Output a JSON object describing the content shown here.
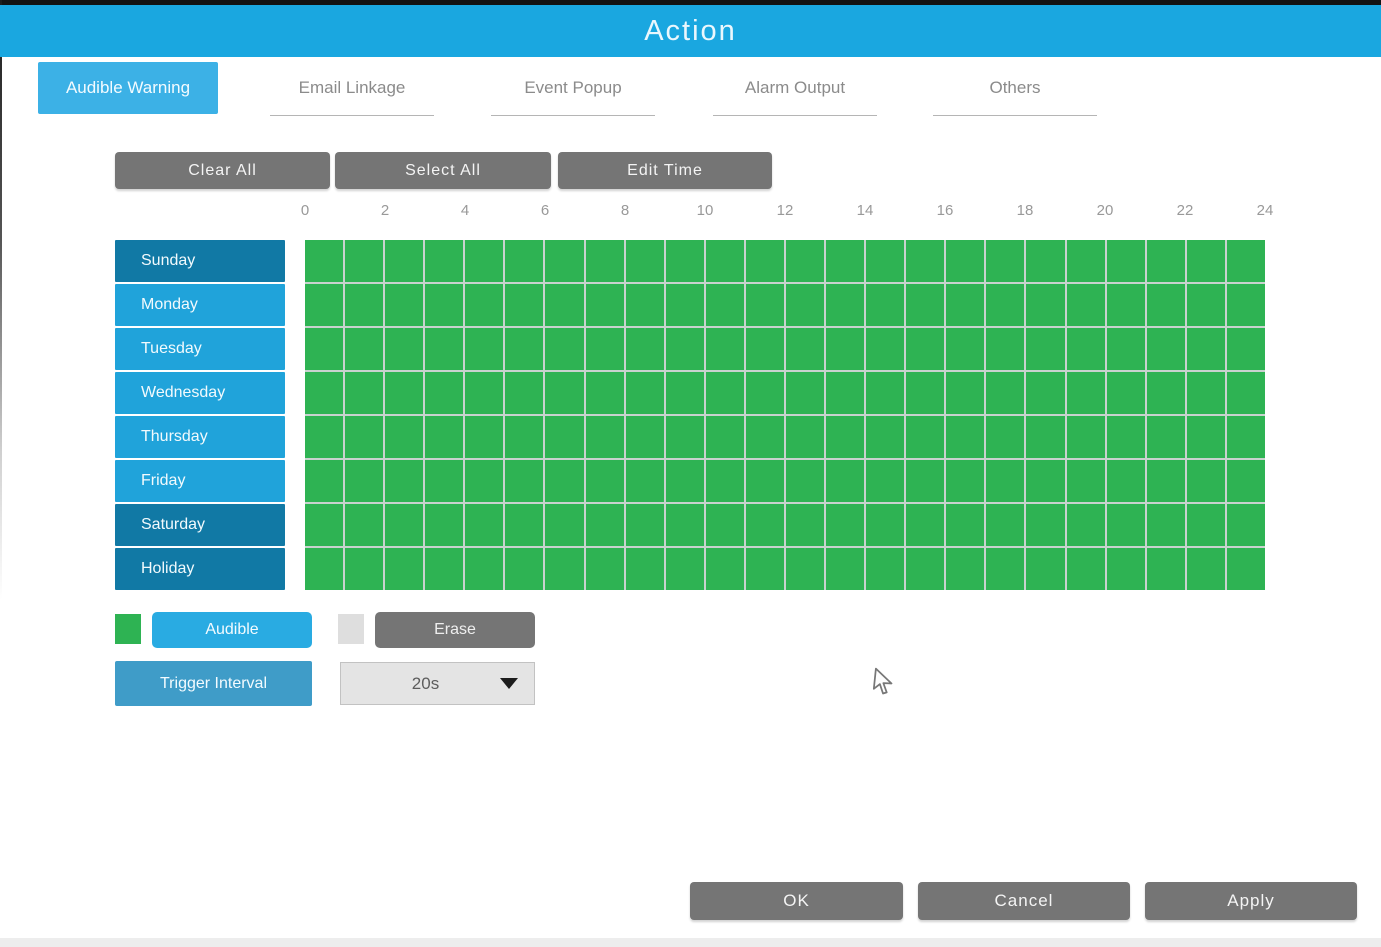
{
  "window": {
    "title": "Action"
  },
  "tabs": [
    {
      "label": "Audible Warning",
      "active": true
    },
    {
      "label": "Email Linkage",
      "active": false
    },
    {
      "label": "Event Popup",
      "active": false
    },
    {
      "label": "Alarm Output",
      "active": false
    },
    {
      "label": "Others",
      "active": false
    }
  ],
  "toolbar": {
    "clear_all": "Clear All",
    "select_all": "Select All",
    "edit_time": "Edit Time"
  },
  "schedule": {
    "hour_ticks": [
      0,
      2,
      4,
      6,
      8,
      10,
      12,
      14,
      16,
      18,
      20,
      22,
      24
    ],
    "hours_per_day": 24,
    "days": [
      {
        "label": "Sunday",
        "tone": "dark",
        "ranges": [
          [
            0,
            24
          ]
        ]
      },
      {
        "label": "Monday",
        "tone": "light",
        "ranges": [
          [
            0,
            24
          ]
        ]
      },
      {
        "label": "Tuesday",
        "tone": "light",
        "ranges": [
          [
            0,
            24
          ]
        ]
      },
      {
        "label": "Wednesday",
        "tone": "light",
        "ranges": [
          [
            0,
            24
          ]
        ]
      },
      {
        "label": "Thursday",
        "tone": "light",
        "ranges": [
          [
            0,
            24
          ]
        ]
      },
      {
        "label": "Friday",
        "tone": "light",
        "ranges": [
          [
            0,
            24
          ]
        ]
      },
      {
        "label": "Saturday",
        "tone": "dark",
        "ranges": [
          [
            0,
            24
          ]
        ]
      },
      {
        "label": "Holiday",
        "tone": "dark",
        "ranges": [
          [
            0,
            24
          ]
        ]
      }
    ]
  },
  "legend": {
    "audible": {
      "label": "Audible",
      "color": "#2eb353"
    },
    "erase": {
      "label": "Erase",
      "color": "#dedede"
    }
  },
  "trigger_interval": {
    "label": "Trigger Interval",
    "value": "20s"
  },
  "footer": {
    "ok": "OK",
    "cancel": "Cancel",
    "apply": "Apply"
  },
  "colors": {
    "header_blue": "#1aa7e0",
    "active_tab_blue": "#3cb1e6",
    "day_light_blue": "#20a3da",
    "day_dark_blue": "#1179a5",
    "audible_green": "#2eb353",
    "button_gray": "#757575",
    "accent_blue": "#29abe2"
  }
}
